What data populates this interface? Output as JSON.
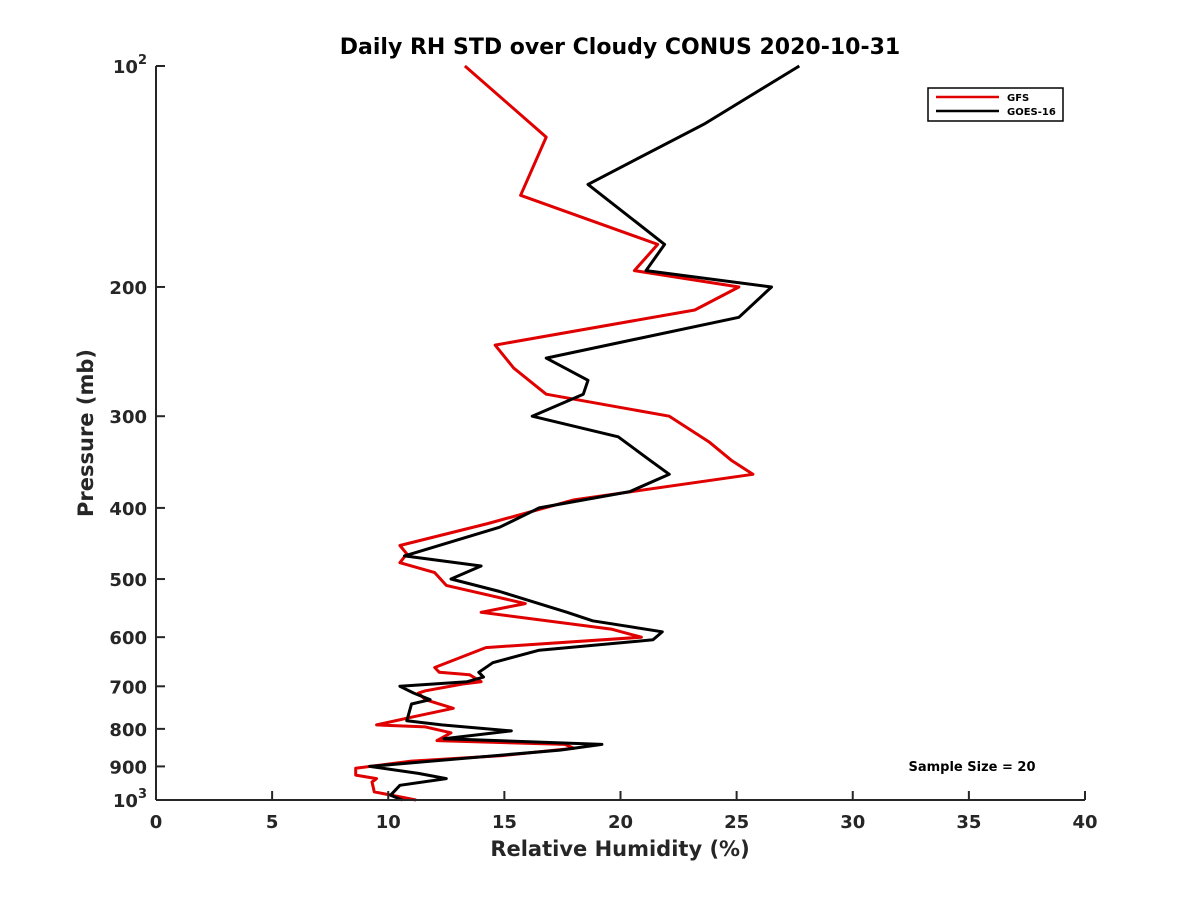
{
  "chart_data": {
    "type": "line",
    "title": "Daily RH STD over Cloudy CONUS 2020-10-31",
    "xlabel": "Relative Humidity (%)",
    "ylabel": "Pressure (mb)",
    "xlim": [
      0,
      40
    ],
    "ylim": [
      100,
      1000
    ],
    "y_scale": "log",
    "y_reversed": true,
    "grid": false,
    "legend_position": "top-right",
    "x_ticks": [
      0,
      5,
      10,
      15,
      20,
      25,
      30,
      35,
      40
    ],
    "y_ticks": [
      {
        "value": 100,
        "base": "10",
        "exp": "2"
      },
      {
        "value": 200,
        "label": "200"
      },
      {
        "value": 300,
        "label": "300"
      },
      {
        "value": 400,
        "label": "400"
      },
      {
        "value": 500,
        "label": "500"
      },
      {
        "value": 600,
        "label": "600"
      },
      {
        "value": 700,
        "label": "700"
      },
      {
        "value": 800,
        "label": "800"
      },
      {
        "value": 900,
        "label": "900"
      },
      {
        "value": 1000,
        "base": "10",
        "exp": "3"
      }
    ],
    "series": [
      {
        "name": "GFS",
        "color": "#e00000",
        "points": [
          [
            13.3,
            100
          ],
          [
            16.8,
            125
          ],
          [
            15.7,
            150
          ],
          [
            21.6,
            175
          ],
          [
            20.6,
            190
          ],
          [
            25.1,
            200
          ],
          [
            23.2,
            215
          ],
          [
            14.6,
            240
          ],
          [
            15.4,
            258
          ],
          [
            16.8,
            280
          ],
          [
            22.1,
            300
          ],
          [
            23.8,
            325
          ],
          [
            24.8,
            345
          ],
          [
            25.7,
            360
          ],
          [
            18.0,
            390
          ],
          [
            14.3,
            420
          ],
          [
            10.5,
            450
          ],
          [
            10.8,
            462
          ],
          [
            10.5,
            475
          ],
          [
            12.0,
            490
          ],
          [
            12.5,
            510
          ],
          [
            15.9,
            540
          ],
          [
            14.0,
            555
          ],
          [
            19.6,
            585
          ],
          [
            20.9,
            600
          ],
          [
            14.2,
            620
          ],
          [
            12.0,
            660
          ],
          [
            12.2,
            670
          ],
          [
            13.5,
            675
          ],
          [
            14.0,
            690
          ],
          [
            13.2,
            695
          ],
          [
            11.6,
            710
          ],
          [
            11.3,
            715
          ],
          [
            11.6,
            730
          ],
          [
            12.8,
            750
          ],
          [
            11.1,
            770
          ],
          [
            9.5,
            790
          ],
          [
            11.6,
            795
          ],
          [
            12.7,
            810
          ],
          [
            12.1,
            830
          ],
          [
            17.6,
            840
          ],
          [
            18.0,
            850
          ],
          [
            14.9,
            870
          ],
          [
            11.0,
            885
          ],
          [
            8.6,
            905
          ],
          [
            8.6,
            925
          ],
          [
            9.5,
            935
          ],
          [
            9.3,
            945
          ],
          [
            9.4,
            975
          ],
          [
            11.2,
            1000
          ]
        ]
      },
      {
        "name": "GOES-16",
        "color": "#000000",
        "points": [
          [
            27.7,
            100
          ],
          [
            23.6,
            120
          ],
          [
            18.6,
            145
          ],
          [
            21.9,
            175
          ],
          [
            21.1,
            190
          ],
          [
            26.5,
            200
          ],
          [
            25.1,
            220
          ],
          [
            16.8,
            250
          ],
          [
            18.6,
            268
          ],
          [
            18.4,
            280
          ],
          [
            16.2,
            300
          ],
          [
            19.9,
            320
          ],
          [
            21.3,
            345
          ],
          [
            22.1,
            360
          ],
          [
            20.4,
            380
          ],
          [
            16.5,
            400
          ],
          [
            14.8,
            425
          ],
          [
            10.7,
            465
          ],
          [
            14.0,
            480
          ],
          [
            12.7,
            500
          ],
          [
            14.8,
            520
          ],
          [
            17.7,
            555
          ],
          [
            18.8,
            570
          ],
          [
            21.8,
            590
          ],
          [
            21.4,
            605
          ],
          [
            16.5,
            625
          ],
          [
            14.5,
            650
          ],
          [
            13.9,
            670
          ],
          [
            14.1,
            680
          ],
          [
            13.4,
            690
          ],
          [
            10.5,
            700
          ],
          [
            11.1,
            715
          ],
          [
            11.8,
            730
          ],
          [
            11.0,
            740
          ],
          [
            10.8,
            780
          ],
          [
            12.3,
            790
          ],
          [
            15.3,
            805
          ],
          [
            12.4,
            825
          ],
          [
            19.2,
            840
          ],
          [
            17.4,
            855
          ],
          [
            9.2,
            900
          ],
          [
            11.3,
            920
          ],
          [
            12.5,
            935
          ],
          [
            10.5,
            955
          ],
          [
            10.1,
            985
          ],
          [
            10.6,
            1000
          ]
        ]
      }
    ],
    "annotation": "Sample Size = 20"
  }
}
